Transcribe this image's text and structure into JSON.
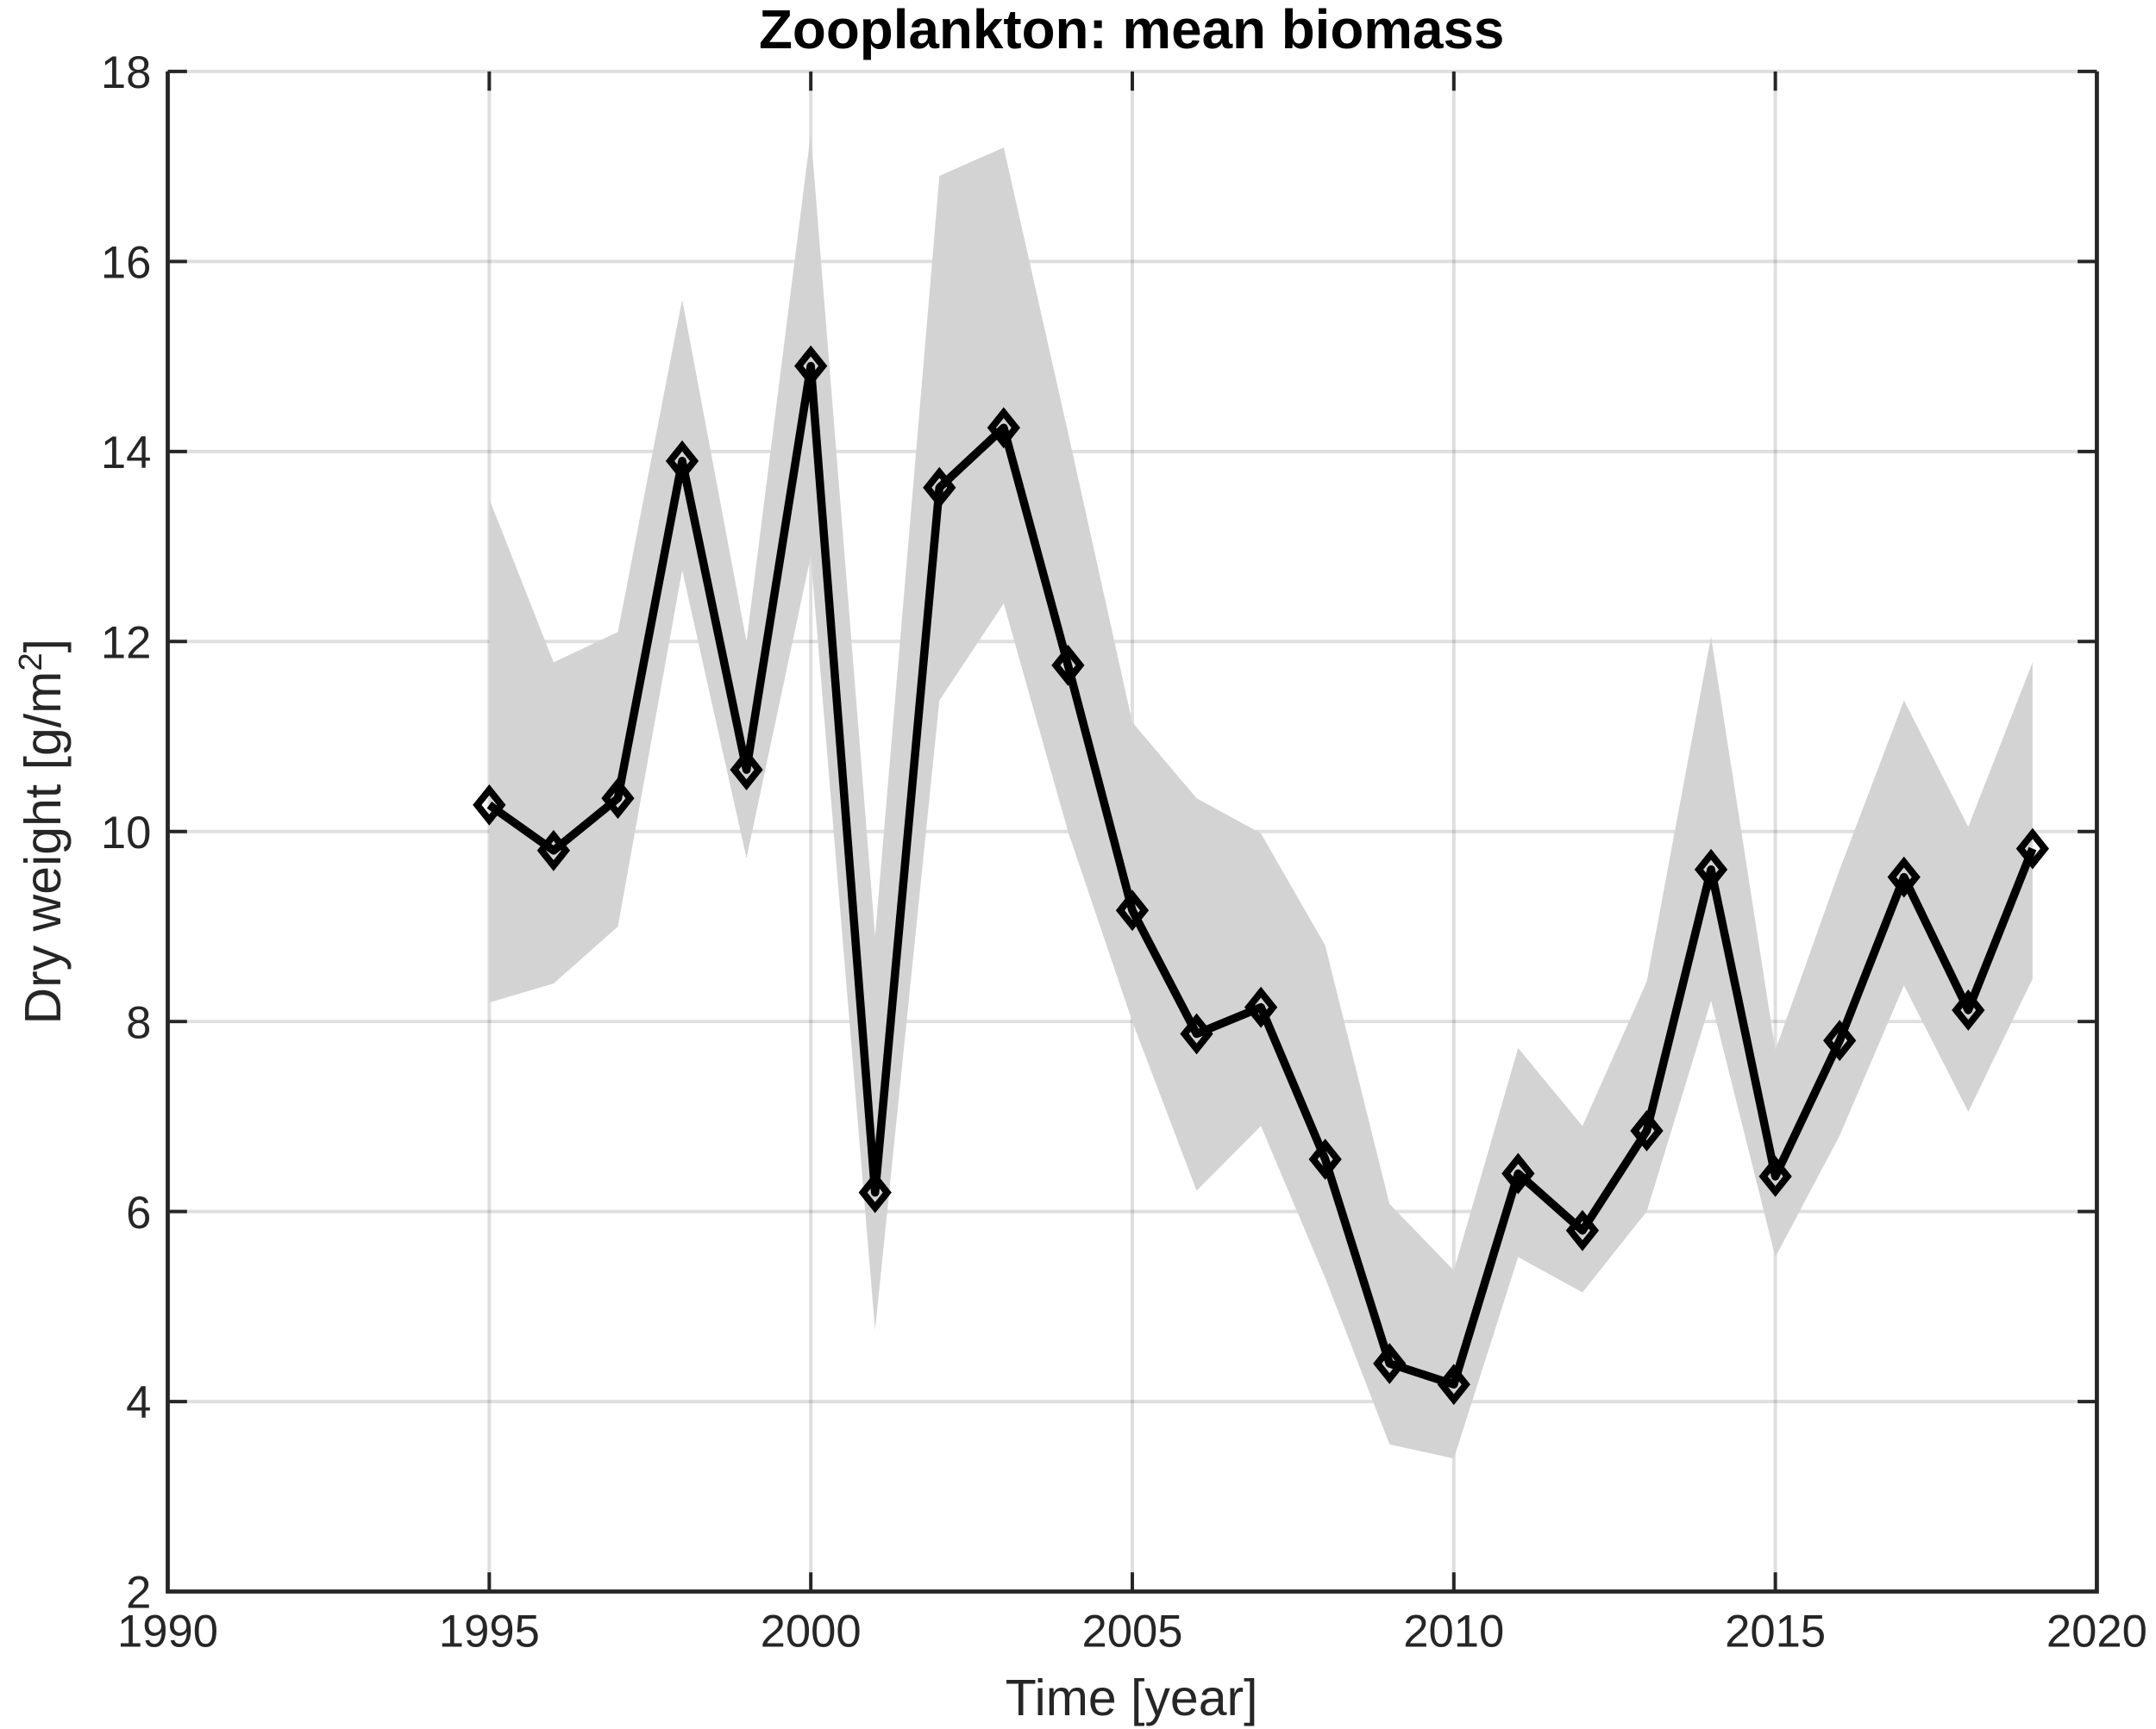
{
  "chart_data": {
    "type": "line",
    "title": "Zooplankton: mean biomass",
    "xlabel": "Time [year]",
    "ylabel_main": "Dry weight [g/m",
    "ylabel_sup": "2",
    "ylabel_end": "]",
    "xlim": [
      1990,
      2020
    ],
    "ylim": [
      2,
      18
    ],
    "xticks": [
      1990,
      1995,
      2000,
      2005,
      2010,
      2015,
      2020
    ],
    "yticks": [
      2,
      4,
      6,
      8,
      10,
      12,
      14,
      16,
      18
    ],
    "grid": true,
    "marker": "diamond",
    "line_color": "#000000",
    "band_color": "#d3d3d3",
    "x": [
      1995,
      1996,
      1997,
      1998,
      1999,
      2000,
      2001,
      2002,
      2003,
      2004,
      2005,
      2006,
      2007,
      2008,
      2009,
      2010,
      2011,
      2012,
      2013,
      2014,
      2015,
      2016,
      2017,
      2018,
      2019
    ],
    "mean": [
      10.28,
      9.8,
      10.35,
      13.9,
      10.65,
      14.9,
      6.2,
      13.62,
      14.25,
      11.75,
      9.17,
      7.87,
      8.15,
      6.55,
      4.4,
      4.18,
      6.4,
      5.8,
      6.85,
      9.6,
      6.37,
      7.8,
      9.52,
      8.12,
      9.82
    ],
    "upper": [
      13.5,
      11.78,
      12.1,
      15.6,
      12.0,
      17.35,
      8.9,
      16.9,
      17.2,
      14.2,
      11.15,
      10.35,
      9.98,
      8.8,
      6.08,
      5.38,
      7.72,
      6.9,
      8.42,
      12.05,
      7.7,
      9.6,
      11.38,
      10.05,
      11.78
    ],
    "lower": [
      8.2,
      8.4,
      9.0,
      12.75,
      9.72,
      12.9,
      4.75,
      11.38,
      12.4,
      10.0,
      8.0,
      6.22,
      6.9,
      5.3,
      3.55,
      3.4,
      5.52,
      5.15,
      6.0,
      8.22,
      5.52,
      6.8,
      8.38,
      7.05,
      8.45
    ]
  }
}
